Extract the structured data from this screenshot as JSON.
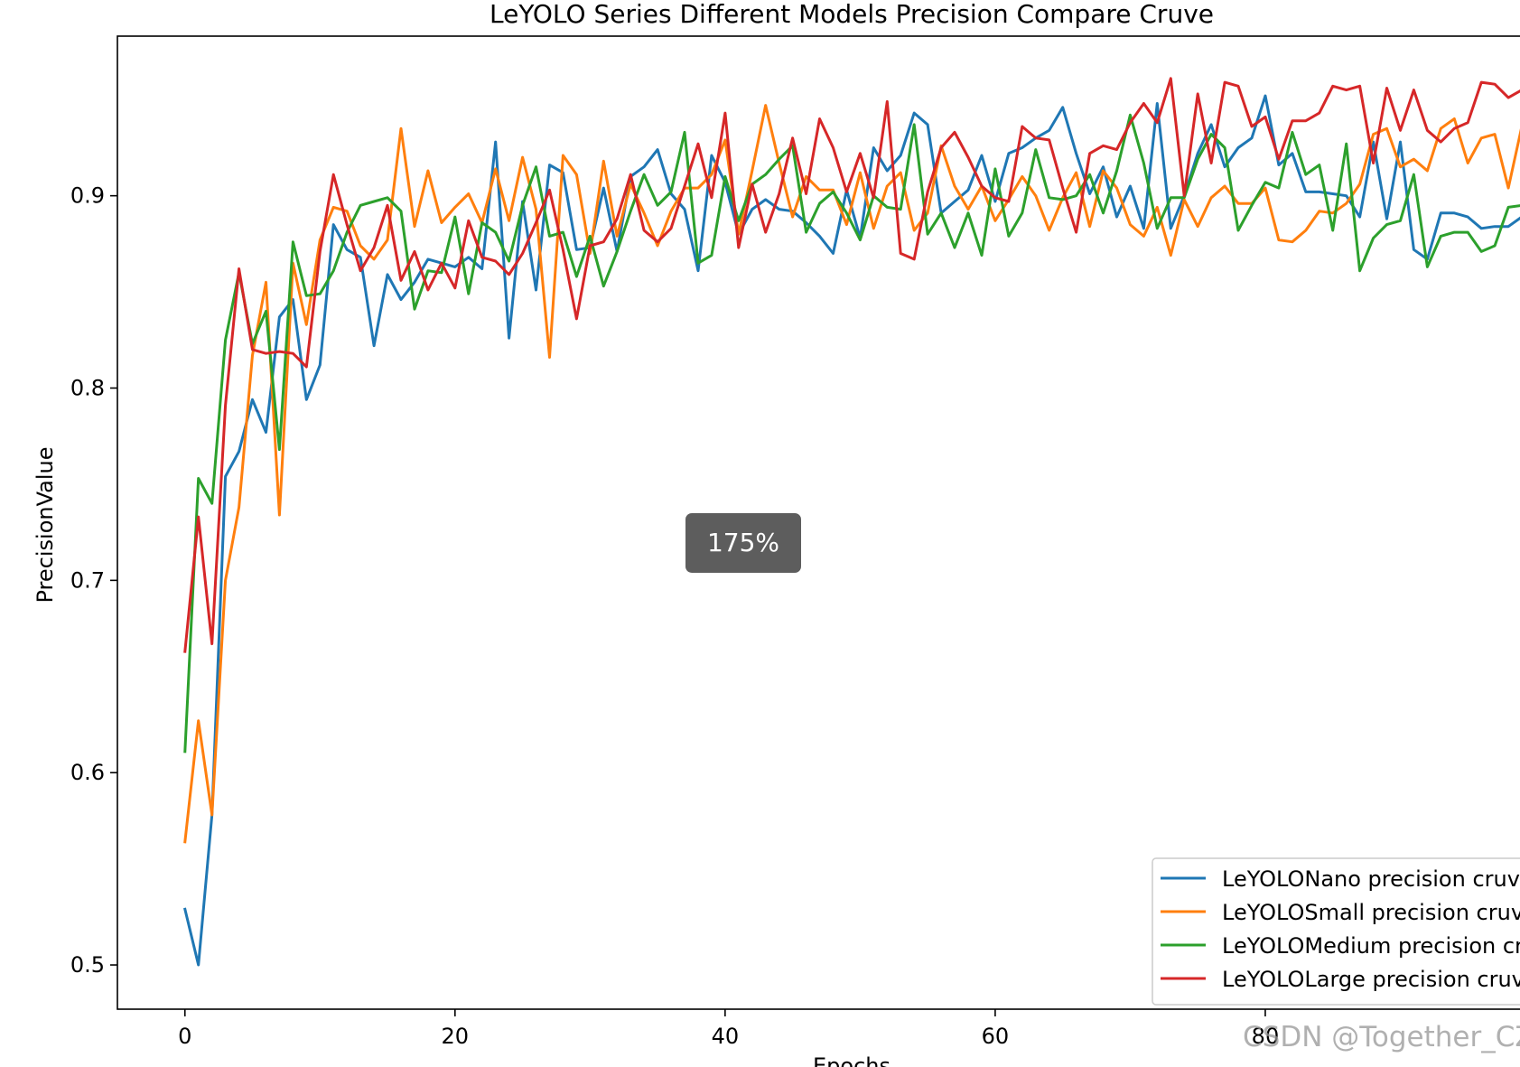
{
  "chart_data": {
    "type": "line",
    "title": "LeYOLO Series Different Models Precision Compare Cruve",
    "xlabel": "Epochs",
    "ylabel": "PrecisionValue",
    "xlim": [
      -5,
      100
    ],
    "ylim": [
      0.477,
      0.983
    ],
    "xticks": [
      "0",
      "20",
      "40",
      "60",
      "80"
    ],
    "yticks": [
      "0.5",
      "0.6",
      "0.7",
      "0.8",
      "0.9"
    ],
    "grid": false,
    "legend_position": "lower-right",
    "x": [
      0,
      1,
      2,
      3,
      4,
      5,
      6,
      7,
      8,
      9,
      10,
      11,
      12,
      13,
      14,
      15,
      16,
      17,
      18,
      19,
      20,
      21,
      22,
      23,
      24,
      25,
      26,
      27,
      28,
      29,
      30,
      31,
      32,
      33,
      34,
      35,
      36,
      37,
      38,
      39,
      40,
      41,
      42,
      43,
      44,
      45,
      46,
      47,
      48,
      49,
      50,
      51,
      52,
      53,
      54,
      55,
      56,
      57,
      58,
      59,
      60,
      61,
      62,
      63,
      64,
      65,
      66,
      67,
      68,
      69,
      70,
      71,
      72,
      73,
      74,
      75,
      76,
      77,
      78,
      79,
      80,
      81,
      82,
      83,
      84,
      85,
      86,
      87,
      88,
      89,
      90,
      91,
      92,
      93,
      94,
      95,
      96,
      97,
      98,
      99
    ],
    "series": [
      {
        "name": "LeYOLONano precision cruve",
        "color": "#1f77b4",
        "values": [
          0.529,
          0.5,
          0.578,
          0.754,
          0.767,
          0.794,
          0.777,
          0.837,
          0.846,
          0.794,
          0.812,
          0.885,
          0.872,
          0.868,
          0.822,
          0.859,
          0.846,
          0.855,
          0.867,
          0.865,
          0.863,
          0.868,
          0.862,
          0.928,
          0.826,
          0.897,
          0.851,
          0.916,
          0.912,
          0.872,
          0.873,
          0.904,
          0.871,
          0.91,
          0.915,
          0.924,
          0.901,
          0.893,
          0.861,
          0.921,
          0.907,
          0.88,
          0.893,
          0.898,
          0.893,
          0.892,
          0.886,
          0.879,
          0.87,
          0.903,
          0.878,
          0.925,
          0.913,
          0.921,
          0.943,
          0.937,
          0.891,
          0.897,
          0.903,
          0.921,
          0.897,
          0.922,
          0.925,
          0.93,
          0.934,
          0.946,
          0.922,
          0.901,
          0.915,
          0.889,
          0.905,
          0.883,
          0.948,
          0.883,
          0.9,
          0.922,
          0.937,
          0.915,
          0.925,
          0.93,
          0.952,
          0.916,
          0.922,
          0.902,
          0.902,
          0.901,
          0.9,
          0.889,
          0.928,
          0.888,
          0.928,
          0.872,
          0.867,
          0.891,
          0.891,
          0.889,
          0.883,
          0.884,
          0.884,
          0.889
        ]
      },
      {
        "name": "LeYOLOSmall precision cruve",
        "color": "#ff7f0e",
        "values": [
          0.564,
          0.627,
          0.578,
          0.7,
          0.738,
          0.817,
          0.855,
          0.734,
          0.865,
          0.833,
          0.877,
          0.894,
          0.892,
          0.874,
          0.867,
          0.877,
          0.935,
          0.884,
          0.913,
          0.886,
          0.894,
          0.901,
          0.886,
          0.914,
          0.887,
          0.92,
          0.893,
          0.816,
          0.921,
          0.911,
          0.87,
          0.918,
          0.879,
          0.906,
          0.891,
          0.874,
          0.892,
          0.904,
          0.904,
          0.911,
          0.929,
          0.88,
          0.913,
          0.947,
          0.917,
          0.889,
          0.91,
          0.903,
          0.903,
          0.885,
          0.912,
          0.883,
          0.905,
          0.912,
          0.882,
          0.891,
          0.926,
          0.905,
          0.893,
          0.905,
          0.887,
          0.898,
          0.91,
          0.9,
          0.882,
          0.899,
          0.912,
          0.884,
          0.913,
          0.904,
          0.885,
          0.879,
          0.894,
          0.869,
          0.898,
          0.884,
          0.899,
          0.905,
          0.896,
          0.896,
          0.904,
          0.877,
          0.876,
          0.882,
          0.892,
          0.891,
          0.896,
          0.906,
          0.932,
          0.935,
          0.915,
          0.919,
          0.913,
          0.935,
          0.94,
          0.917,
          0.93,
          0.932,
          0.904,
          0.936
        ]
      },
      {
        "name": "LeYOLOMedium precision cruve",
        "color": "#2ca02c",
        "values": [
          0.611,
          0.753,
          0.74,
          0.825,
          0.86,
          0.823,
          0.84,
          0.768,
          0.876,
          0.848,
          0.849,
          0.861,
          0.881,
          0.895,
          0.897,
          0.899,
          0.892,
          0.841,
          0.861,
          0.86,
          0.889,
          0.849,
          0.886,
          0.881,
          0.866,
          0.895,
          0.915,
          0.879,
          0.881,
          0.858,
          0.879,
          0.853,
          0.871,
          0.892,
          0.911,
          0.895,
          0.902,
          0.933,
          0.865,
          0.869,
          0.91,
          0.887,
          0.906,
          0.911,
          0.919,
          0.926,
          0.881,
          0.896,
          0.902,
          0.891,
          0.877,
          0.9,
          0.894,
          0.893,
          0.937,
          0.88,
          0.891,
          0.873,
          0.891,
          0.869,
          0.914,
          0.879,
          0.891,
          0.924,
          0.899,
          0.898,
          0.9,
          0.911,
          0.891,
          0.913,
          0.942,
          0.917,
          0.883,
          0.899,
          0.899,
          0.919,
          0.932,
          0.925,
          0.882,
          0.895,
          0.907,
          0.904,
          0.933,
          0.911,
          0.916,
          0.882,
          0.927,
          0.861,
          0.878,
          0.885,
          0.887,
          0.911,
          0.863,
          0.879,
          0.881,
          0.881,
          0.871,
          0.874,
          0.894,
          0.895
        ]
      },
      {
        "name": "LeYOLOLarge precision cruve",
        "color": "#d62728",
        "values": [
          0.663,
          0.733,
          0.667,
          0.791,
          0.862,
          0.82,
          0.818,
          0.819,
          0.818,
          0.811,
          0.871,
          0.911,
          0.885,
          0.861,
          0.873,
          0.895,
          0.856,
          0.871,
          0.851,
          0.865,
          0.852,
          0.887,
          0.868,
          0.866,
          0.859,
          0.87,
          0.886,
          0.903,
          0.872,
          0.836,
          0.874,
          0.876,
          0.888,
          0.911,
          0.882,
          0.876,
          0.883,
          0.905,
          0.927,
          0.899,
          0.943,
          0.873,
          0.906,
          0.881,
          0.901,
          0.93,
          0.901,
          0.94,
          0.925,
          0.902,
          0.922,
          0.899,
          0.949,
          0.87,
          0.867,
          0.902,
          0.925,
          0.933,
          0.92,
          0.905,
          0.899,
          0.897,
          0.936,
          0.93,
          0.929,
          0.904,
          0.881,
          0.922,
          0.926,
          0.924,
          0.938,
          0.948,
          0.938,
          0.961,
          0.9,
          0.953,
          0.917,
          0.959,
          0.957,
          0.936,
          0.941,
          0.919,
          0.939,
          0.939,
          0.943,
          0.957,
          0.955,
          0.957,
          0.917,
          0.956,
          0.934,
          0.955,
          0.934,
          0.928,
          0.935,
          0.938,
          0.959,
          0.958,
          0.951,
          0.955
        ]
      }
    ]
  },
  "overlay": {
    "zoom_label": "175%"
  },
  "watermark": {
    "text": "CSDN @Together_CZ"
  }
}
